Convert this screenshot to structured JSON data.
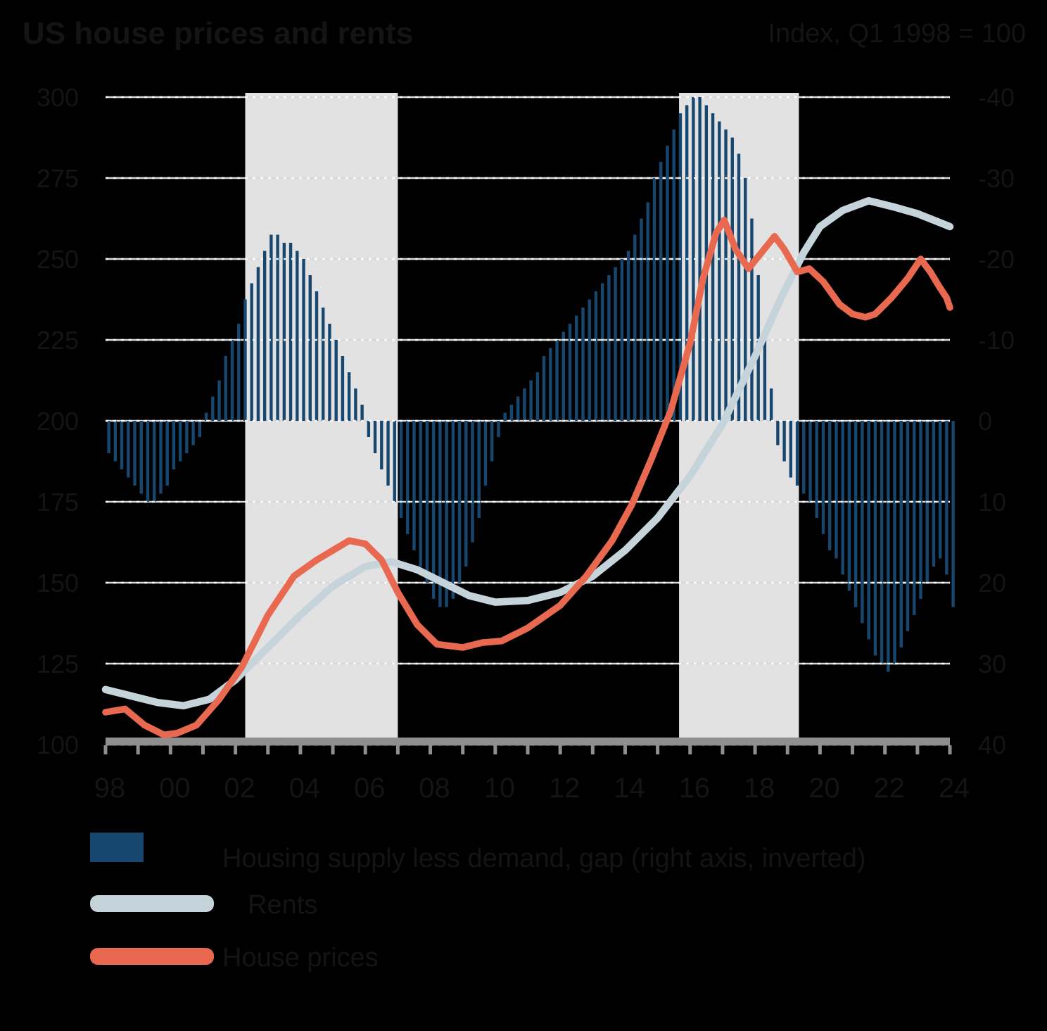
{
  "title": "US house prices and rents",
  "note": "Index, Q1 1998 = 100",
  "legend": {
    "bar_label": "Housing supply less demand, gap (right axis, inverted)",
    "gray_line_label": "Rents",
    "red_line_label": "House prices"
  },
  "colors": {
    "background": "#000000",
    "bar": "#17476f",
    "gray_line": "#c5d3da",
    "red_line": "#e8694f",
    "band": "#e2e2e2",
    "gridline": "#d9d9d9",
    "grid_dash_overlay": "#ffffff",
    "axis": "#8f8f8f",
    "text": "#141414"
  },
  "chart_data": {
    "type": "combo (bar + line)",
    "x_axis": {
      "start_year": 1998,
      "end_year": 2024,
      "tick_every_years": 1,
      "labels": [
        "98",
        "00",
        "02",
        "04",
        "06",
        "08",
        "10",
        "12",
        "14",
        "16",
        "18",
        "20",
        "22",
        "24"
      ]
    },
    "left_axis": {
      "ticks": [
        300,
        275,
        250,
        225,
        200,
        175,
        150,
        125,
        100
      ],
      "applies_to": "index lines"
    },
    "right_axis": {
      "ticks": [
        -40,
        -30,
        -20,
        -10,
        0,
        10,
        20,
        30,
        40
      ],
      "inverted": true,
      "applies_to": "gap bars"
    },
    "shaded_bands_years": [
      [
        2002.3,
        2007.0
      ],
      [
        2015.66,
        2019.35
      ]
    ],
    "bars": {
      "name": "Housing supply less demand, gap",
      "x_start": 1998.1,
      "x_step": 0.2,
      "values": [
        4,
        5,
        6,
        7,
        8,
        9,
        10,
        10,
        9,
        8,
        6,
        5,
        4,
        3,
        2,
        -1,
        -3,
        -5,
        -8,
        -10,
        -12,
        -15,
        -17,
        -19,
        -21,
        -23,
        -23,
        -22,
        -22,
        -21,
        -20,
        -18,
        -16,
        -14,
        -12,
        -10,
        -8,
        -6,
        -4,
        -2,
        2,
        4,
        6,
        8,
        10,
        12,
        14,
        16,
        18,
        20,
        22,
        23,
        23,
        22,
        20,
        18,
        15,
        12,
        8,
        5,
        2,
        -1,
        -2,
        -3,
        -4,
        -5,
        -6,
        -8,
        -9,
        -10,
        -11,
        -12,
        -13,
        -14,
        -15,
        -16,
        -17,
        -18,
        -19,
        -20,
        -21,
        -23,
        -25,
        -27,
        -30,
        -32,
        -34,
        -36,
        -38,
        -39,
        -40,
        -40,
        -39,
        -38,
        -37,
        -36,
        -35,
        -33,
        -30,
        -25,
        -18,
        -10,
        -4,
        3,
        5,
        7,
        8,
        9,
        10,
        12,
        14,
        16,
        17,
        19,
        21,
        23,
        25,
        27,
        29,
        30,
        31,
        30,
        28,
        26,
        24,
        22,
        20,
        18,
        17,
        19,
        23
      ]
    },
    "series": [
      {
        "name": "Rents",
        "axis": "left",
        "points": [
          [
            1998,
            117
          ],
          [
            1998.8,
            115
          ],
          [
            1999.6,
            113
          ],
          [
            2000.4,
            112
          ],
          [
            2001.2,
            114
          ],
          [
            2002,
            120
          ],
          [
            2003,
            130
          ],
          [
            2004,
            140
          ],
          [
            2005,
            149
          ],
          [
            2006,
            155
          ],
          [
            2006.8,
            156.5
          ],
          [
            2007.6,
            154
          ],
          [
            2008.4,
            150
          ],
          [
            2009.2,
            146
          ],
          [
            2010,
            144
          ],
          [
            2011,
            144.5
          ],
          [
            2012,
            147
          ],
          [
            2013,
            152
          ],
          [
            2014,
            160
          ],
          [
            2015,
            170
          ],
          [
            2016,
            183
          ],
          [
            2017,
            199
          ],
          [
            2018,
            220
          ],
          [
            2018.8,
            238
          ],
          [
            2019.5,
            252
          ],
          [
            2020,
            260
          ],
          [
            2020.7,
            265
          ],
          [
            2021.5,
            268
          ],
          [
            2022.3,
            266
          ],
          [
            2023,
            264
          ],
          [
            2023.5,
            262
          ],
          [
            2024,
            260
          ]
        ]
      },
      {
        "name": "House prices",
        "axis": "left",
        "points": [
          [
            1998,
            110
          ],
          [
            1998.6,
            111
          ],
          [
            1999.2,
            106
          ],
          [
            1999.8,
            103
          ],
          [
            2000.2,
            103.5
          ],
          [
            2000.8,
            106
          ],
          [
            2001.5,
            114
          ],
          [
            2002.2,
            124
          ],
          [
            2003,
            140
          ],
          [
            2003.8,
            152
          ],
          [
            2004.5,
            157
          ],
          [
            2005,
            160
          ],
          [
            2005.5,
            163
          ],
          [
            2006,
            162
          ],
          [
            2006.5,
            157
          ],
          [
            2007,
            147
          ],
          [
            2007.6,
            137
          ],
          [
            2008.2,
            131
          ],
          [
            2009,
            130
          ],
          [
            2009.6,
            131.5
          ],
          [
            2010.2,
            132
          ],
          [
            2011,
            136
          ],
          [
            2012,
            143
          ],
          [
            2012.8,
            152
          ],
          [
            2013.6,
            163
          ],
          [
            2014.2,
            174
          ],
          [
            2014.8,
            188
          ],
          [
            2015.4,
            203
          ],
          [
            2016,
            224
          ],
          [
            2016.4,
            244
          ],
          [
            2016.8,
            258
          ],
          [
            2017.05,
            262
          ],
          [
            2017.4,
            253
          ],
          [
            2017.8,
            247
          ],
          [
            2018.2,
            252
          ],
          [
            2018.6,
            257
          ],
          [
            2018.9,
            253
          ],
          [
            2019.3,
            246
          ],
          [
            2019.67,
            247
          ],
          [
            2020.1,
            243
          ],
          [
            2020.6,
            236
          ],
          [
            2021,
            233
          ],
          [
            2021.4,
            232
          ],
          [
            2021.7,
            233
          ],
          [
            2022.2,
            238
          ],
          [
            2022.7,
            244
          ],
          [
            2023.1,
            250
          ],
          [
            2023.4,
            246
          ],
          [
            2023.7,
            241
          ],
          [
            2023.9,
            238
          ],
          [
            2024,
            235
          ]
        ]
      }
    ]
  }
}
